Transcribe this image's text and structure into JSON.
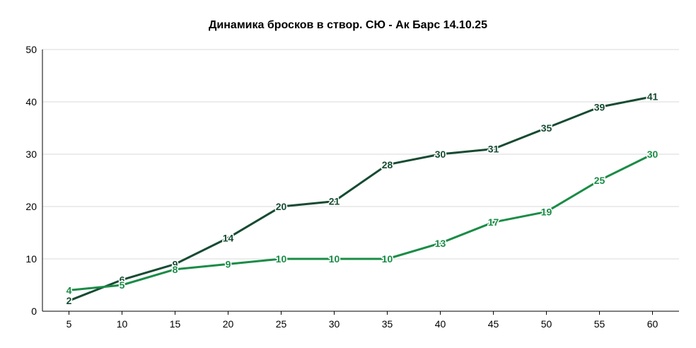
{
  "chart_data": {
    "type": "line",
    "title": "Динамика бросков в створ. СЮ - Ак Барс 14.10.25",
    "xlabel": "",
    "ylabel": "",
    "x": [
      5,
      10,
      15,
      20,
      25,
      30,
      35,
      40,
      45,
      50,
      55,
      60
    ],
    "xlim": [
      2.5,
      62.5
    ],
    "ylim": [
      0,
      50
    ],
    "yticks": [
      0,
      10,
      20,
      30,
      40,
      50
    ],
    "grid": true,
    "legend": "none",
    "series": [
      {
        "color": "#164b32",
        "values": [
          2,
          6,
          9,
          14,
          20,
          21,
          28,
          30,
          31,
          35,
          39,
          41
        ]
      },
      {
        "color": "#1a8c46",
        "values": [
          4,
          5,
          8,
          9,
          10,
          10,
          10,
          13,
          17,
          19,
          25,
          30
        ]
      }
    ]
  }
}
